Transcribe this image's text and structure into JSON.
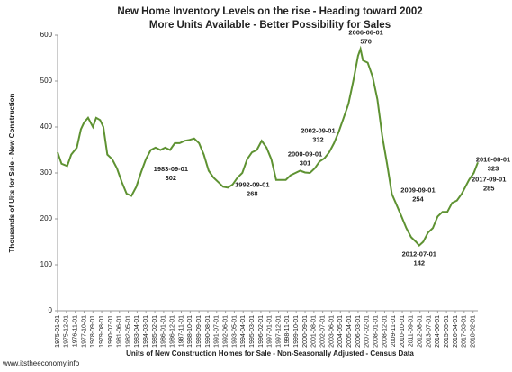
{
  "chart_data": {
    "type": "line",
    "title": "New Home Inventory Levels on the rise - Heading toward 2002",
    "subtitle": "More Units Available - Better Possibility for Sales",
    "ylabel": "Thousands of Uits for Sale - New Construction",
    "xlabel": "Units of New Construction Homes for Sale - Non-Seasonally Adjusted - Census Data",
    "footer": "www.itstheeconomy.info",
    "color": "#5e9232",
    "grid": false,
    "ylim": [
      0,
      600
    ],
    "yticks": [
      0,
      100,
      200,
      300,
      400,
      500,
      600
    ],
    "xlim": [
      "1975-01-01",
      "2018-08-01"
    ],
    "xticks": [
      "1975-01-01",
      "1975-12-01",
      "1976-11-01",
      "1977-10-01",
      "1978-09-01",
      "1979-08-01",
      "1980-07-01",
      "1981-06-01",
      "1982-05-01",
      "1983-04-01",
      "1984-03-01",
      "1985-02-01",
      "1986-01-01",
      "1986-12-01",
      "1987-11-01",
      "1988-10-01",
      "1989-09-01",
      "1990-08-01",
      "1991-07-01",
      "1992-06-01",
      "1993-05-01",
      "1994-04-01",
      "1995-03-01",
      "1996-02-01",
      "1997-01-01",
      "1997-12-01",
      "1998-11-01",
      "1999-10-01",
      "2000-09-01",
      "2001-08-01",
      "2002-07-01",
      "2003-06-01",
      "2004-05-01",
      "2005-04-01",
      "2006-03-01",
      "2007-02-01",
      "2008-01-01",
      "2008-12-01",
      "2009-11-01",
      "2010-10-01",
      "2011-09-01",
      "2012-08-01",
      "2013-07-01",
      "2014-06-01",
      "2015-05-01",
      "2016-04-01",
      "2017-03-01",
      "2018-02-01"
    ],
    "x": [
      "1975-01-01",
      "1975-06-01",
      "1976-01-01",
      "1976-06-01",
      "1977-01-01",
      "1977-06-01",
      "1977-10-01",
      "1978-03-01",
      "1978-09-01",
      "1979-01-01",
      "1979-06-01",
      "1979-10-01",
      "1980-03-01",
      "1980-09-01",
      "1981-03-01",
      "1981-09-01",
      "1982-03-01",
      "1982-09-01",
      "1983-03-01",
      "1983-09-01",
      "1984-03-01",
      "1984-09-01",
      "1985-03-01",
      "1985-09-01",
      "1986-03-01",
      "1986-09-01",
      "1987-03-01",
      "1987-09-01",
      "1988-03-01",
      "1988-09-01",
      "1989-03-01",
      "1989-09-01",
      "1990-03-01",
      "1990-09-01",
      "1991-03-01",
      "1991-09-01",
      "1992-03-01",
      "1992-09-01",
      "1993-03-01",
      "1993-09-01",
      "1994-03-01",
      "1994-09-01",
      "1995-03-01",
      "1995-09-01",
      "1996-03-01",
      "1996-09-01",
      "1997-03-01",
      "1997-09-01",
      "1998-03-01",
      "1998-09-01",
      "1999-03-01",
      "1999-09-01",
      "2000-03-01",
      "2000-09-01",
      "2001-03-01",
      "2001-09-01",
      "2002-03-01",
      "2002-09-01",
      "2003-03-01",
      "2003-09-01",
      "2004-03-01",
      "2004-09-01",
      "2005-03-01",
      "2005-09-01",
      "2006-03-01",
      "2006-06-01",
      "2006-09-01",
      "2007-03-01",
      "2007-09-01",
      "2008-03-01",
      "2008-09-01",
      "2009-03-01",
      "2009-09-01",
      "2010-03-01",
      "2010-09-01",
      "2011-03-01",
      "2011-09-01",
      "2012-03-01",
      "2012-07-01",
      "2012-12-01",
      "2013-06-01",
      "2013-12-01",
      "2014-06-01",
      "2014-12-01",
      "2015-06-01",
      "2015-12-01",
      "2016-06-01",
      "2016-12-01",
      "2017-06-01",
      "2017-09-01",
      "2018-03-01",
      "2018-08-01"
    ],
    "values": [
      345,
      320,
      315,
      340,
      355,
      395,
      410,
      420,
      400,
      420,
      415,
      400,
      340,
      330,
      310,
      280,
      255,
      250,
      270,
      302,
      330,
      350,
      355,
      350,
      355,
      350,
      365,
      365,
      370,
      372,
      375,
      365,
      340,
      305,
      290,
      280,
      270,
      268,
      275,
      290,
      300,
      330,
      345,
      350,
      370,
      355,
      330,
      285,
      285,
      285,
      295,
      300,
      305,
      301,
      300,
      310,
      325,
      332,
      345,
      365,
      390,
      420,
      450,
      500,
      555,
      570,
      545,
      540,
      510,
      460,
      380,
      320,
      254,
      230,
      205,
      180,
      160,
      150,
      142,
      150,
      170,
      180,
      205,
      215,
      215,
      235,
      240,
      255,
      275,
      285,
      300,
      323
    ],
    "annotations": [
      {
        "x": "1983-09-01",
        "value": 302
      },
      {
        "x": "1992-09-01",
        "value": 268
      },
      {
        "x": "2000-09-01",
        "value": 301
      },
      {
        "x": "2002-09-01",
        "value": 332
      },
      {
        "x": "2006-06-01",
        "value": 570
      },
      {
        "x": "2009-09-01",
        "value": 254
      },
      {
        "x": "2012-07-01",
        "value": 142
      },
      {
        "x": "2017-09-01",
        "value": 285
      },
      {
        "x": "2018-08-01",
        "value": 323
      }
    ]
  }
}
